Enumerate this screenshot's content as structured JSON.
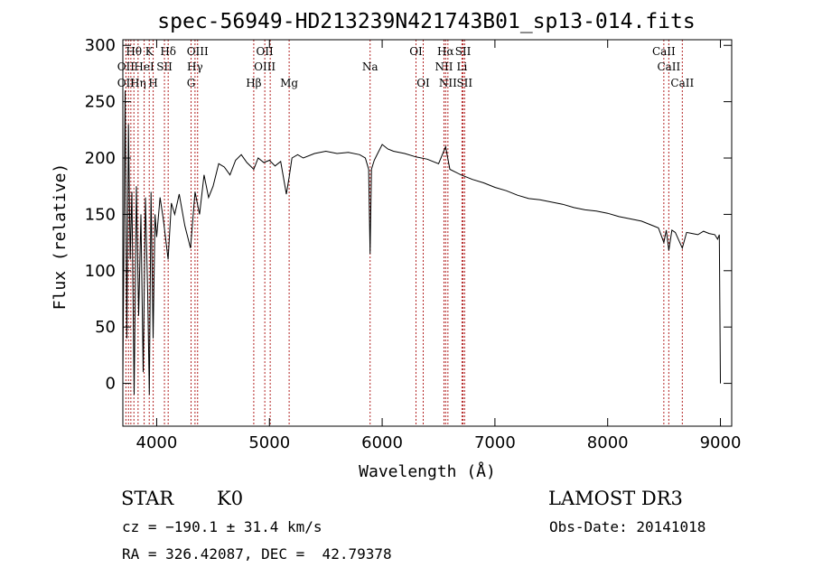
{
  "chart_data": {
    "type": "line",
    "title": "spec-56949-HD213239N421743B01_sp13-014.fits",
    "xlabel": "Wavelength (Å)",
    "ylabel": "Flux (relative)",
    "xlim": [
      3700,
      9100
    ],
    "ylim": [
      -38,
      305
    ],
    "xticks": [
      4000,
      5000,
      6000,
      7000,
      8000,
      9000
    ],
    "yticks": [
      0,
      50,
      100,
      150,
      200,
      250,
      300
    ],
    "series": [
      {
        "name": "flux",
        "x": [
          3700,
          3720,
          3735,
          3750,
          3765,
          3780,
          3800,
          3820,
          3840,
          3860,
          3880,
          3900,
          3920,
          3935,
          3950,
          3968,
          3985,
          4000,
          4030,
          4060,
          4101,
          4130,
          4160,
          4200,
          4250,
          4300,
          4340,
          4380,
          4420,
          4460,
          4500,
          4550,
          4600,
          4650,
          4700,
          4750,
          4800,
          4861,
          4900,
          4950,
          5000,
          5050,
          5100,
          5150,
          5175,
          5200,
          5250,
          5300,
          5400,
          5500,
          5600,
          5700,
          5800,
          5850,
          5880,
          5893,
          5905,
          5930,
          5950,
          6000,
          6050,
          6100,
          6200,
          6300,
          6400,
          6500,
          6563,
          6600,
          6700,
          6800,
          6900,
          7000,
          7100,
          7200,
          7300,
          7400,
          7500,
          7600,
          7700,
          7800,
          7900,
          8000,
          8100,
          8200,
          8300,
          8400,
          8450,
          8498,
          8520,
          8542,
          8570,
          8600,
          8662,
          8700,
          8750,
          8800,
          8850,
          8900,
          8950,
          8975,
          8990,
          9000
        ],
        "y": [
          5,
          260,
          40,
          230,
          110,
          170,
          -10,
          175,
          60,
          150,
          10,
          165,
          80,
          -10,
          170,
          40,
          150,
          130,
          165,
          145,
          110,
          160,
          150,
          168,
          140,
          120,
          170,
          150,
          185,
          165,
          175,
          195,
          192,
          185,
          198,
          203,
          196,
          190,
          200,
          196,
          198,
          193,
          197,
          168,
          183,
          200,
          203,
          200,
          204,
          206,
          204,
          205,
          203,
          200,
          190,
          115,
          190,
          198,
          202,
          212,
          208,
          206,
          204,
          201,
          199,
          195,
          210,
          190,
          185,
          181,
          178,
          174,
          171,
          167,
          164,
          163,
          161,
          159,
          156,
          154,
          153,
          151,
          148,
          146,
          144,
          140,
          138,
          125,
          136,
          118,
          136,
          134,
          120,
          134,
          133,
          132,
          135,
          133,
          132,
          128,
          132,
          0
        ]
      }
    ],
    "line_ids": [
      {
        "label": "Hθ",
        "x": 3798,
        "row": 0
      },
      {
        "label": "K",
        "x": 3934,
        "row": 0
      },
      {
        "label": "Hδ",
        "x": 4102,
        "row": 0
      },
      {
        "label": "OIII",
        "x": 4363,
        "row": 0
      },
      {
        "label": "OII",
        "x": 4959,
        "row": 0
      },
      {
        "label": "OI",
        "x": 6300,
        "row": 0
      },
      {
        "label": "Hα",
        "x": 6563,
        "row": 0
      },
      {
        "label": "SII",
        "x": 6717,
        "row": 0
      },
      {
        "label": "CaII",
        "x": 8498,
        "row": 0
      },
      {
        "label": "OII",
        "x": 3727,
        "row": 1
      },
      {
        "label": "HeI",
        "x": 3889,
        "row": 1
      },
      {
        "label": "SII",
        "x": 4069,
        "row": 1
      },
      {
        "label": "Hγ",
        "x": 4340,
        "row": 1
      },
      {
        "label": "OIII",
        "x": 4959,
        "row": 1
      },
      {
        "label": "Na",
        "x": 5893,
        "row": 1
      },
      {
        "label": "NII",
        "x": 6548,
        "row": 1
      },
      {
        "label": "Li",
        "x": 6708,
        "row": 1
      },
      {
        "label": "CaII",
        "x": 8542,
        "row": 1
      },
      {
        "label": "OII",
        "x": 3727,
        "row": 2
      },
      {
        "label": "Hη",
        "x": 3835,
        "row": 2
      },
      {
        "label": "H",
        "x": 3969,
        "row": 2
      },
      {
        "label": "G",
        "x": 4305,
        "row": 2
      },
      {
        "label": "Hβ",
        "x": 4861,
        "row": 2
      },
      {
        "label": "Mg",
        "x": 5175,
        "row": 2
      },
      {
        "label": "OI",
        "x": 6364,
        "row": 2
      },
      {
        "label": "NII",
        "x": 6583,
        "row": 2
      },
      {
        "label": "SII",
        "x": 6731,
        "row": 2
      },
      {
        "label": "CaII",
        "x": 8662,
        "row": 2
      }
    ],
    "marker_lines_x": [
      3727,
      3750,
      3771,
      3798,
      3835,
      3889,
      3934,
      3969,
      4069,
      4102,
      4305,
      4340,
      4363,
      4861,
      4959,
      5007,
      5175,
      5893,
      6300,
      6364,
      6548,
      6563,
      6583,
      6708,
      6717,
      6731,
      8498,
      8542,
      8662
    ],
    "marker_color": "#b22222",
    "line_color": "#000000"
  },
  "info": {
    "class_label": "STAR",
    "subclass": "K0",
    "survey": "LAMOST DR3",
    "cz": "cz = −190.1 ± 31.4 km/s",
    "obs_date": "Obs-Date: 20141018",
    "coords": "RA = 326.42087, DEC =  42.79378"
  }
}
